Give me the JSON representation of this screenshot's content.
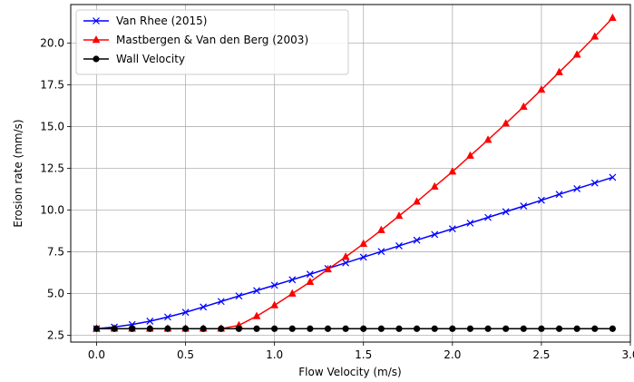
{
  "chart_data": {
    "type": "line",
    "title": "",
    "xlabel": "Flow Velocity (m/s)",
    "ylabel": "Erosion rate (mm/s)",
    "xlim": [
      -0.145,
      3.0
    ],
    "ylim": [
      2.1,
      22.3
    ],
    "xticks": [
      0.0,
      0.5,
      1.0,
      1.5,
      2.0,
      2.5,
      3.0
    ],
    "xtick_labels": [
      "0.0",
      "0.5",
      "1.0",
      "1.5",
      "2.0",
      "2.5",
      "3.0"
    ],
    "yticks": [
      2.5,
      5.0,
      7.5,
      10.0,
      12.5,
      15.0,
      17.5,
      20.0
    ],
    "ytick_labels": [
      "2.5",
      "5.0",
      "7.5",
      "10.0",
      "12.5",
      "15.0",
      "17.5",
      "20.0"
    ],
    "grid": true,
    "legend_position": "top-left",
    "x": [
      0.0,
      0.1,
      0.2,
      0.3,
      0.4,
      0.5,
      0.6,
      0.7,
      0.8,
      0.9,
      1.0,
      1.1,
      1.2,
      1.3,
      1.4,
      1.5,
      1.6,
      1.7,
      1.8,
      1.9,
      2.0,
      2.1,
      2.2,
      2.3,
      2.4,
      2.5,
      2.6,
      2.7,
      2.8,
      2.9
    ],
    "series": [
      {
        "name": "Van Rhee (2015)",
        "color": "#0000ff",
        "marker": "x",
        "values": [
          2.9,
          3.0,
          3.15,
          3.35,
          3.6,
          3.88,
          4.2,
          4.53,
          4.86,
          5.18,
          5.5,
          5.83,
          6.16,
          6.5,
          6.84,
          7.18,
          7.52,
          7.86,
          8.2,
          8.54,
          8.88,
          9.22,
          9.56,
          9.9,
          10.24,
          10.59,
          10.94,
          11.28,
          11.62,
          11.96
        ]
      },
      {
        "name": "Mastbergen & Van den Berg (2003)",
        "color": "#ff0000",
        "marker": "triangle",
        "values": [
          2.9,
          2.9,
          2.9,
          2.9,
          2.9,
          2.9,
          2.9,
          2.9,
          3.1,
          3.65,
          4.3,
          5.0,
          5.7,
          6.45,
          7.2,
          7.98,
          8.8,
          9.65,
          10.5,
          11.4,
          12.3,
          13.25,
          14.2,
          15.18,
          16.18,
          17.2,
          18.25,
          19.3,
          20.38,
          21.5
        ]
      },
      {
        "name": "Wall Velocity",
        "color": "#000000",
        "marker": "circle",
        "values": [
          2.9,
          2.9,
          2.9,
          2.9,
          2.9,
          2.9,
          2.9,
          2.9,
          2.9,
          2.9,
          2.9,
          2.9,
          2.9,
          2.9,
          2.9,
          2.9,
          2.9,
          2.9,
          2.9,
          2.9,
          2.9,
          2.9,
          2.9,
          2.9,
          2.9,
          2.9,
          2.9,
          2.9,
          2.9,
          2.9
        ]
      }
    ]
  }
}
